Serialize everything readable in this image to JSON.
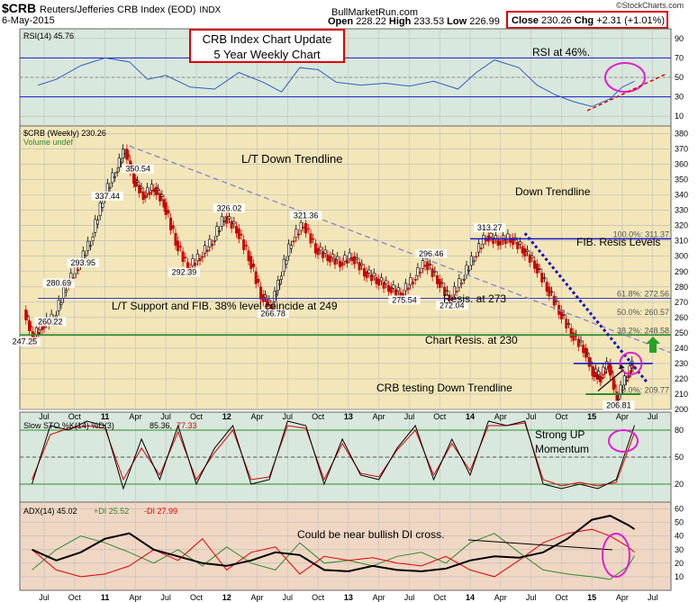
{
  "header": {
    "symbol": "$CRB",
    "name": "Reuters/Jefferies CRB Index (EOD)",
    "exchange": "INDX",
    "date": "6-May-2015",
    "site": "BullMarketRun.com",
    "stockcharts": "©StockCharts.com",
    "open_label": "Open",
    "open": "228.22",
    "high_label": "High",
    "high": "233.53",
    "low_label": "Low",
    "low": "226.99",
    "close_label": "Close",
    "close": "230.26",
    "chg_label": "Chg",
    "chg": "+2.31 (+1.01%)"
  },
  "colors": {
    "panel_bg_top": "#d8e8dc",
    "price_bg": "#f3e6b8",
    "adx_bg": "#f0d7c4",
    "candle_up": "#000000",
    "candle_down": "#cc0000",
    "blue_line": "#1a1acc",
    "green_line": "#2e8b2e",
    "magenta": "#e020d0",
    "red_box": "#e00000"
  },
  "chart_data": [
    {
      "type": "line",
      "panel": "rsi",
      "legend": "RSI(14) 45.76",
      "ylim": [
        0,
        100
      ],
      "y_ticks": [
        10,
        30,
        50,
        70,
        90
      ],
      "levels": [
        30,
        70
      ],
      "series": [
        {
          "name": "RSI(14)",
          "x": [
            2010.45,
            2010.6,
            2010.8,
            2011.0,
            2011.2,
            2011.35,
            2011.5,
            2011.7,
            2011.9,
            2012.1,
            2012.3,
            2012.45,
            2012.6,
            2012.75,
            2012.9,
            2013.1,
            2013.3,
            2013.5,
            2013.7,
            2013.9,
            2014.05,
            2014.2,
            2014.4,
            2014.55,
            2014.7,
            2014.85,
            2015.0,
            2015.15,
            2015.25,
            2015.35
          ],
          "values": [
            42,
            48,
            62,
            70,
            66,
            48,
            52,
            40,
            38,
            55,
            45,
            35,
            60,
            58,
            45,
            42,
            44,
            41,
            46,
            38,
            55,
            68,
            60,
            42,
            32,
            25,
            20,
            28,
            40,
            46
          ]
        }
      ]
    },
    {
      "type": "line",
      "panel": "price",
      "legend": "$CRB (Weekly) 230.26",
      "legend2": "Volume undef",
      "ylim": [
        200,
        385
      ],
      "y_ticks": [
        200,
        210,
        220,
        230,
        240,
        250,
        260,
        270,
        280,
        290,
        300,
        310,
        320,
        330,
        340,
        350,
        360,
        370,
        380
      ],
      "x_ticks": [
        {
          "label": "Jul",
          "x": 2010.5
        },
        {
          "label": "Oct",
          "x": 2010.75
        },
        {
          "label": "11",
          "x": 2011.0
        },
        {
          "label": "Apr",
          "x": 2011.25
        },
        {
          "label": "Jul",
          "x": 2011.5
        },
        {
          "label": "Oct",
          "x": 2011.75
        },
        {
          "label": "12",
          "x": 2012.0
        },
        {
          "label": "Apr",
          "x": 2012.25
        },
        {
          "label": "Jul",
          "x": 2012.5
        },
        {
          "label": "Oct",
          "x": 2012.75
        },
        {
          "label": "13",
          "x": 2013.0
        },
        {
          "label": "Apr",
          "x": 2013.25
        },
        {
          "label": "Jul",
          "x": 2013.5
        },
        {
          "label": "Oct",
          "x": 2013.75
        },
        {
          "label": "14",
          "x": 2014.0
        },
        {
          "label": "Apr",
          "x": 2014.25
        },
        {
          "label": "Jul",
          "x": 2014.5
        },
        {
          "label": "Oct",
          "x": 2014.75
        },
        {
          "label": "15",
          "x": 2015.0
        },
        {
          "label": "Apr",
          "x": 2015.25
        },
        {
          "label": "Jul",
          "x": 2015.5
        }
      ],
      "series": [
        {
          "name": "$CRB (Weekly)",
          "x": [
            2010.35,
            2010.42,
            2010.5,
            2010.6,
            2010.7,
            2010.8,
            2010.9,
            2011.0,
            2011.1,
            2011.18,
            2011.25,
            2011.33,
            2011.42,
            2011.5,
            2011.6,
            2011.7,
            2011.8,
            2011.9,
            2012.0,
            2012.1,
            2012.2,
            2012.3,
            2012.38,
            2012.45,
            2012.55,
            2012.65,
            2012.75,
            2012.85,
            2012.95,
            2013.05,
            2013.15,
            2013.25,
            2013.35,
            2013.45,
            2013.55,
            2013.65,
            2013.75,
            2013.85,
            2013.95,
            2014.05,
            2014.15,
            2014.25,
            2014.35,
            2014.45,
            2014.55,
            2014.65,
            2014.75,
            2014.85,
            2014.95,
            2015.02,
            2015.08,
            2015.15,
            2015.22,
            2015.3,
            2015.35
          ],
          "values": [
            265,
            247.25,
            255,
            260.22,
            280.69,
            293.95,
            310,
            337.44,
            355,
            370,
            350.54,
            340,
            345,
            335,
            310,
            292.39,
            300,
            310,
            326.02,
            318,
            300,
            275,
            266.78,
            285,
            310,
            321.36,
            305,
            300,
            296,
            300,
            290,
            285,
            280,
            275.54,
            285,
            296.46,
            285,
            272.04,
            285,
            300,
            313.27,
            310,
            312,
            305,
            295,
            280,
            265,
            250,
            240,
            225,
            221,
            230,
            206.81,
            222,
            230.26
          ]
        }
      ],
      "annotations": [
        {
          "label": "247.25"
        },
        {
          "label": "260.22"
        },
        {
          "label": "280.69"
        },
        {
          "label": "293.95"
        },
        {
          "label": "337.44"
        },
        {
          "label": "350.54"
        },
        {
          "label": "292.39"
        },
        {
          "label": "326.02"
        },
        {
          "label": "266.78"
        },
        {
          "label": "321.36"
        },
        {
          "label": "275.54"
        },
        {
          "label": "296.46"
        },
        {
          "label": "272.04"
        },
        {
          "label": "313.27"
        },
        {
          "label": "206.81"
        }
      ],
      "fib_levels": [
        {
          "label": "100.0%: 311.37",
          "value": 311.37
        },
        {
          "label": "61.8%: 272.56",
          "value": 272.56
        },
        {
          "label": "50.0%: 260.57",
          "value": 260.57
        },
        {
          "label": "38.2%: 248.58",
          "value": 248.58
        },
        {
          "label": "0.0%: 209.77",
          "value": 209.77
        }
      ],
      "horizontal_lines": [
        311.37,
        272.56,
        248.58,
        230,
        210
      ],
      "text_notes": {
        "title_box_line1": "CRB Index Chart Update",
        "title_box_line2": "5 Year Weekly Chart",
        "lt_down": "L/T Down Trendline",
        "down_trend": "Down Trendline",
        "fib_resis": "FIB. Resis Levels",
        "resis273": "Resis. at 273",
        "lt_support": "L/T Support and FIB. 38% level coincide at 249",
        "chart_resis": "Chart Resis. at 230",
        "crb_testing": "CRB testing Down Trendline",
        "rsi_note": "RSI at 46%."
      }
    },
    {
      "type": "line",
      "panel": "slow_sto",
      "legend_a": "Slow STO %K(14) %D(3)",
      "legend_k": "85.36,",
      "legend_d": "77.33",
      "ylim": [
        0,
        100
      ],
      "y_ticks": [
        20,
        50,
        80
      ],
      "note_line1": "Strong UP",
      "note_line2": "Momentum",
      "series": [
        {
          "name": "%K(14)",
          "x": [
            2010.4,
            2010.55,
            2010.7,
            2010.85,
            2011.0,
            2011.15,
            2011.3,
            2011.45,
            2011.6,
            2011.75,
            2011.9,
            2012.05,
            2012.2,
            2012.35,
            2012.5,
            2012.65,
            2012.8,
            2012.95,
            2013.1,
            2013.25,
            2013.4,
            2013.55,
            2013.7,
            2013.85,
            2014.0,
            2014.15,
            2014.3,
            2014.45,
            2014.6,
            2014.75,
            2014.9,
            2015.05,
            2015.2,
            2015.35
          ],
          "values": [
            20,
            85,
            80,
            90,
            85,
            15,
            70,
            25,
            85,
            20,
            60,
            85,
            20,
            25,
            90,
            85,
            20,
            70,
            30,
            25,
            60,
            85,
            25,
            70,
            30,
            90,
            85,
            90,
            20,
            15,
            20,
            15,
            25,
            85.36
          ]
        },
        {
          "name": "%D(3)",
          "x": [
            2010.4,
            2010.55,
            2010.7,
            2010.85,
            2011.0,
            2011.15,
            2011.3,
            2011.45,
            2011.6,
            2011.75,
            2011.9,
            2012.05,
            2012.2,
            2012.35,
            2012.5,
            2012.65,
            2012.8,
            2012.95,
            2013.1,
            2013.25,
            2013.4,
            2013.55,
            2013.7,
            2013.85,
            2014.0,
            2014.15,
            2014.3,
            2014.45,
            2014.6,
            2014.75,
            2014.9,
            2015.05,
            2015.2,
            2015.35
          ],
          "values": [
            25,
            75,
            82,
            85,
            82,
            25,
            60,
            30,
            78,
            25,
            55,
            80,
            25,
            28,
            85,
            82,
            25,
            65,
            32,
            28,
            58,
            80,
            30,
            65,
            35,
            85,
            85,
            88,
            25,
            18,
            22,
            18,
            22,
            77.33
          ]
        }
      ]
    },
    {
      "type": "line",
      "panel": "adx",
      "legend_a": "ADX(14) 45.02",
      "legend_b": "+DI 25.52",
      "legend_c": "-DI 27.99",
      "ylim": [
        0,
        65
      ],
      "y_ticks": [
        10,
        20,
        30,
        40,
        50,
        60
      ],
      "note": "Could be near bullish DI cross.",
      "series": [
        {
          "name": "ADX(14)",
          "x": [
            2010.4,
            2010.6,
            2010.8,
            2011.0,
            2011.2,
            2011.4,
            2011.6,
            2011.8,
            2012.0,
            2012.2,
            2012.4,
            2012.6,
            2012.8,
            2013.0,
            2013.2,
            2013.4,
            2013.6,
            2013.8,
            2014.0,
            2014.2,
            2014.4,
            2014.6,
            2014.8,
            2015.0,
            2015.15,
            2015.3,
            2015.35
          ],
          "values": [
            30,
            22,
            28,
            38,
            42,
            30,
            25,
            20,
            18,
            22,
            28,
            26,
            15,
            14,
            18,
            15,
            14,
            16,
            22,
            25,
            24,
            28,
            38,
            52,
            55,
            48,
            45.02
          ]
        },
        {
          "name": "+DI",
          "x": [
            2010.4,
            2010.6,
            2010.8,
            2011.0,
            2011.2,
            2011.4,
            2011.6,
            2011.8,
            2012.0,
            2012.2,
            2012.4,
            2012.6,
            2012.8,
            2013.0,
            2013.2,
            2013.4,
            2013.6,
            2013.8,
            2014.0,
            2014.2,
            2014.4,
            2014.6,
            2014.8,
            2015.0,
            2015.15,
            2015.3,
            2015.35
          ],
          "values": [
            15,
            30,
            40,
            35,
            28,
            20,
            30,
            18,
            32,
            20,
            15,
            35,
            20,
            22,
            18,
            25,
            28,
            20,
            35,
            42,
            28,
            15,
            12,
            10,
            8,
            18,
            25.52
          ]
        },
        {
          "name": "-DI",
          "x": [
            2010.4,
            2010.6,
            2010.8,
            2011.0,
            2011.2,
            2011.4,
            2011.6,
            2011.8,
            2012.0,
            2012.2,
            2012.4,
            2012.6,
            2012.8,
            2013.0,
            2013.2,
            2013.4,
            2013.6,
            2013.8,
            2014.0,
            2014.2,
            2014.4,
            2014.6,
            2014.8,
            2015.0,
            2015.15,
            2015.3,
            2015.35
          ],
          "values": [
            30,
            15,
            10,
            12,
            18,
            30,
            22,
            38,
            15,
            28,
            32,
            12,
            25,
            22,
            24,
            20,
            18,
            25,
            15,
            10,
            22,
            35,
            42,
            45,
            40,
            32,
            27.99
          ]
        }
      ]
    }
  ]
}
